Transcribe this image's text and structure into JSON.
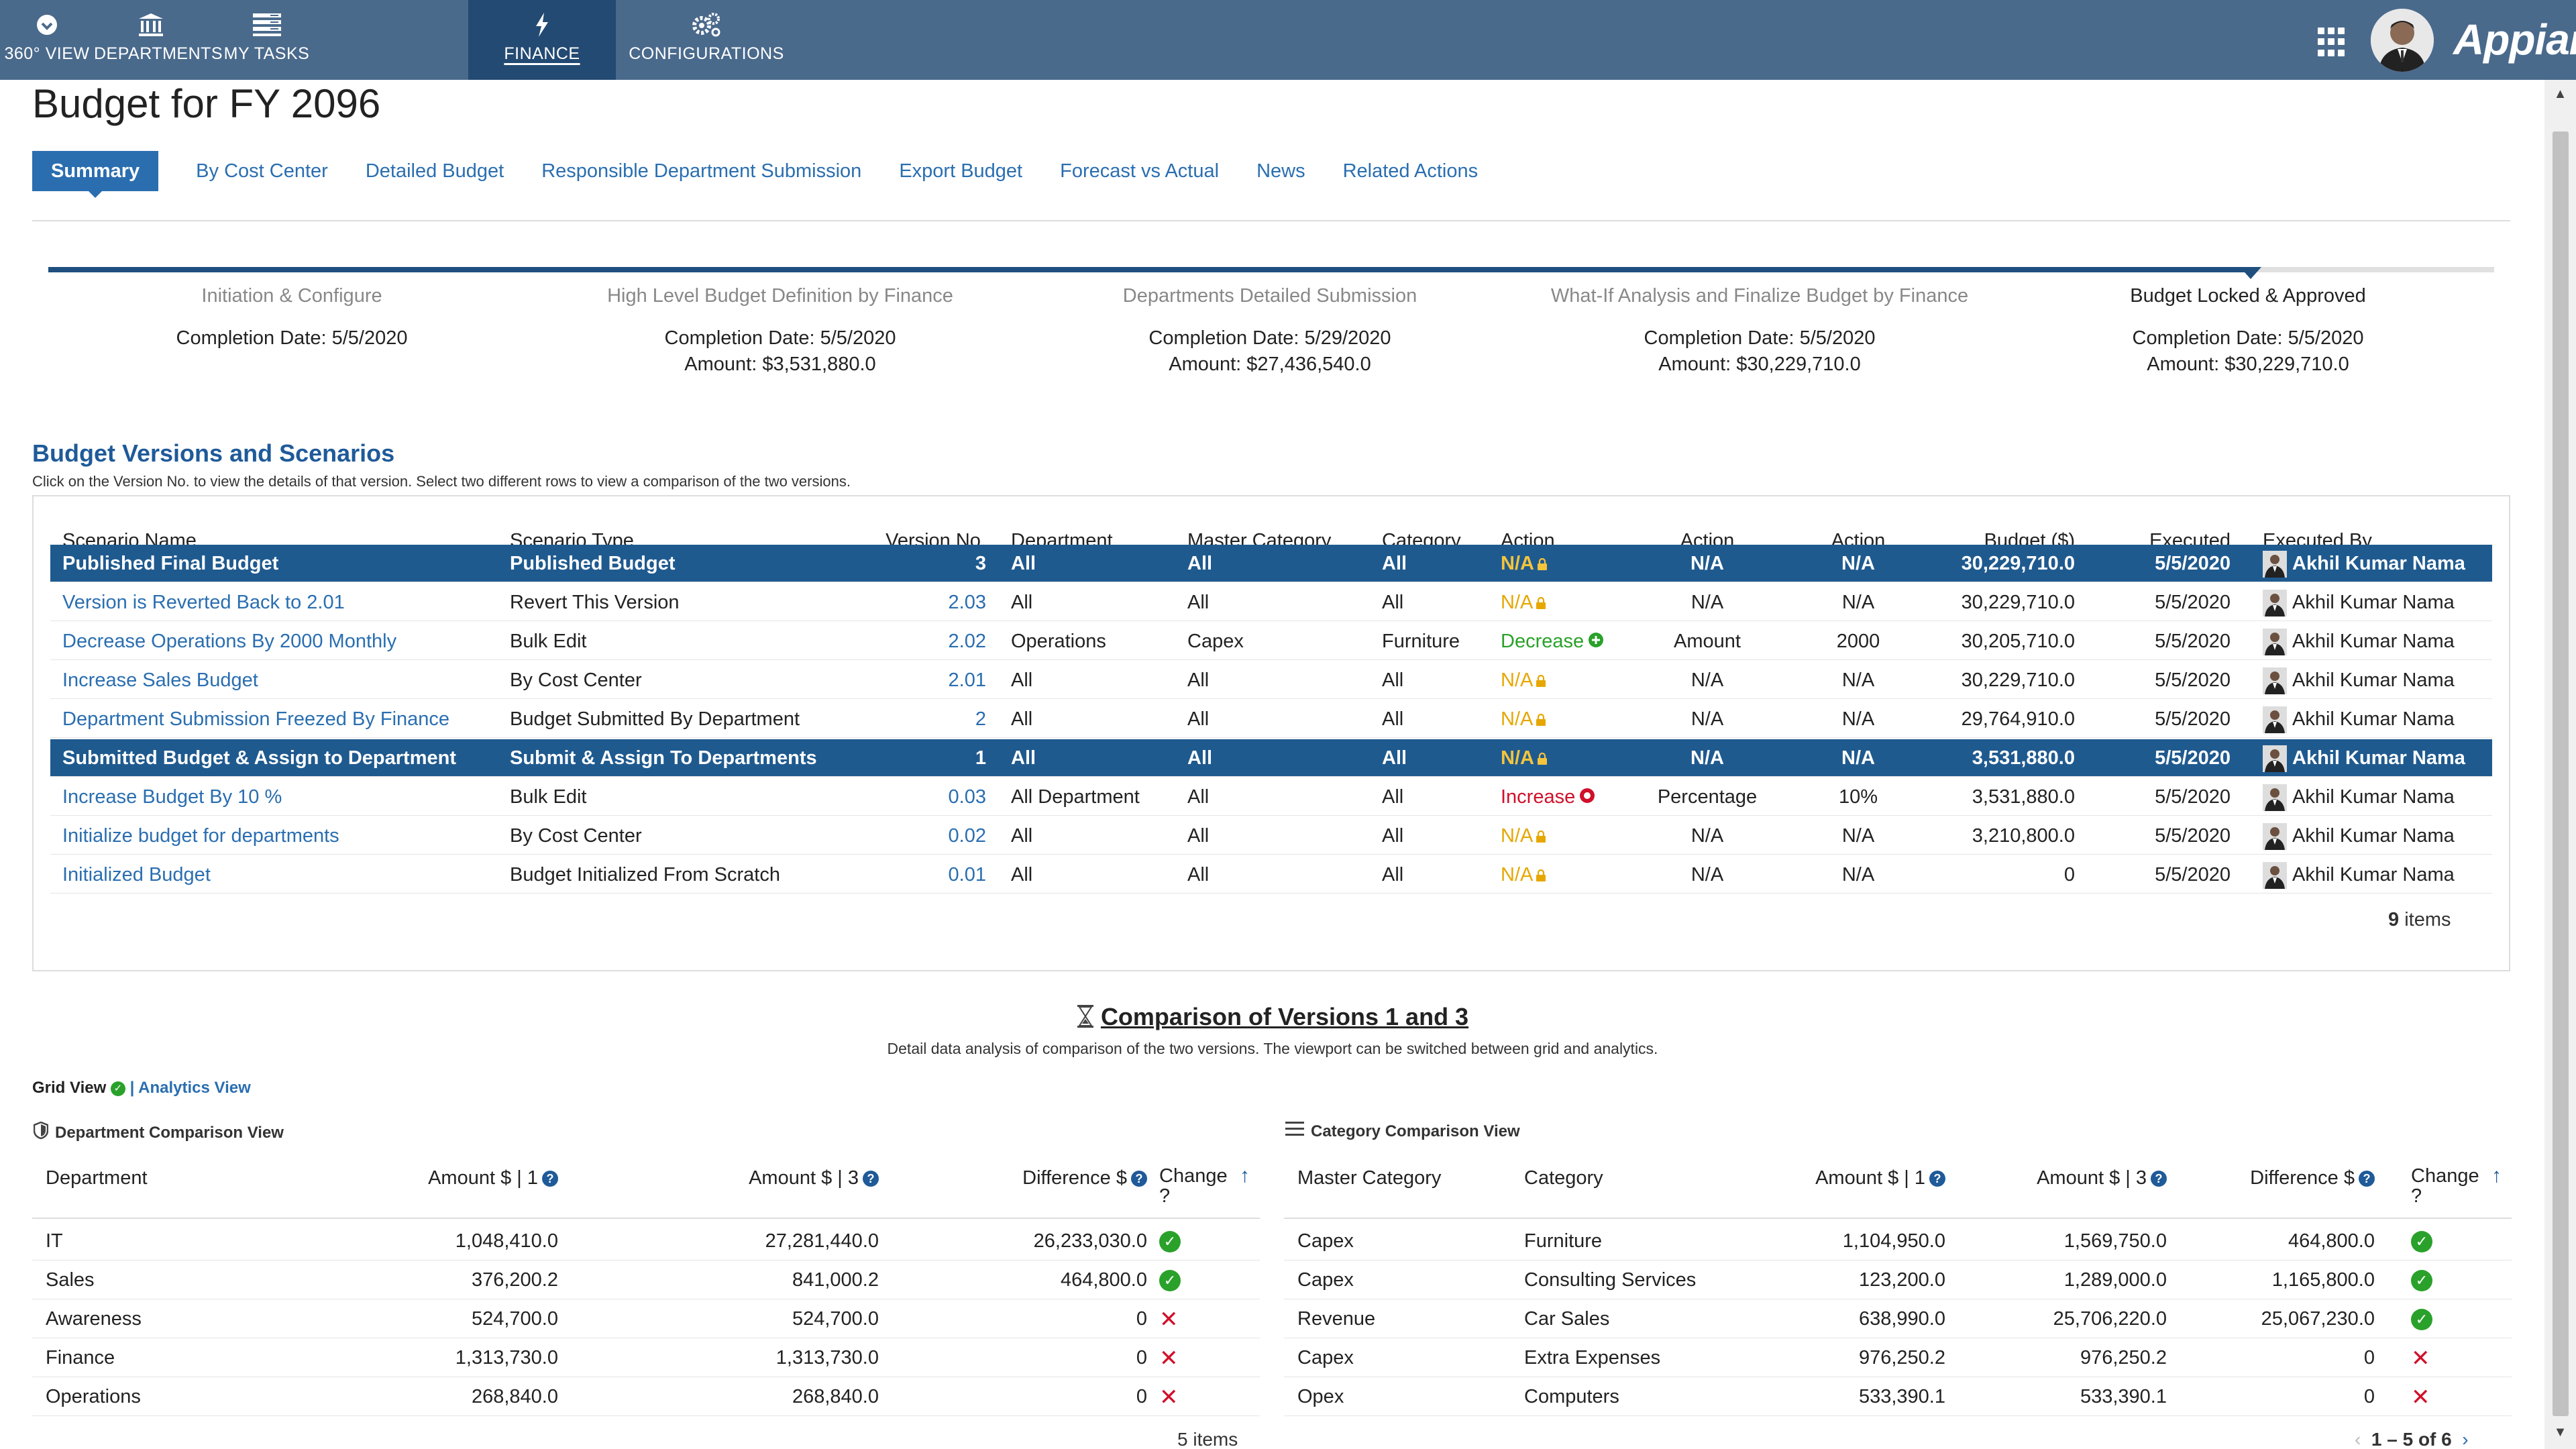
{
  "nav": {
    "items": [
      {
        "label": "360° VIEW",
        "icon": "eye-icon"
      },
      {
        "label": "DEPARTMENTS",
        "icon": "bank-icon"
      },
      {
        "label": "MY TASKS",
        "icon": "task-list-icon"
      },
      {
        "label": "FINANCE",
        "icon": "bolt-icon"
      },
      {
        "label": "CONFIGURATIONS",
        "icon": "gears-icon"
      }
    ],
    "active": "FINANCE",
    "brand": "Appian",
    "colors": {
      "bar": "#4a6a8c",
      "active": "#234a72"
    }
  },
  "page": {
    "title": "Budget for FY 2096"
  },
  "tabs": [
    "Summary",
    "By Cost Center",
    "Detailed Budget",
    "Responsible Department Submission",
    "Export Budget",
    "Forecast vs Actual",
    "News",
    "Related Actions"
  ],
  "timeline": {
    "stages": [
      {
        "name": "Initiation & Configure",
        "date": "Completion Date: 5/5/2020",
        "amount": ""
      },
      {
        "name": "High Level Budget Definition by Finance",
        "date": "Completion Date: 5/5/2020",
        "amount": "Amount: $3,531,880.0"
      },
      {
        "name": "Departments Detailed Submission",
        "date": "Completion Date: 5/29/2020",
        "amount": "Amount: $27,436,540.0"
      },
      {
        "name": "What-If Analysis and Finalize Budget by Finance",
        "date": "Completion Date: 5/5/2020",
        "amount": "Amount: $30,229,710.0"
      },
      {
        "name": "Budget Locked & Approved",
        "date": "Completion Date: 5/5/2020",
        "amount": "Amount: $30,229,710.0"
      }
    ],
    "current": "Budget Locked & Approved"
  },
  "versions": {
    "title": "Budget Versions and Scenarios",
    "subtitle": "Click on the Version No. to view the details of that version. Select two different rows to view a comparison of the two versions.",
    "columns": [
      "Scenario Name",
      "Scenario Type",
      "Version No.",
      "Department",
      "Master Category",
      "Category",
      "Action",
      "Action Type",
      "Action Value",
      "Budget ($)",
      "Executed On",
      "Executed By"
    ],
    "rows": [
      {
        "name": "Published Final Budget",
        "type": "Published Budget",
        "version": "3",
        "dept": "All",
        "master": "All",
        "cat": "All",
        "action": "N/A",
        "actionType": "N/A",
        "actionValue": "N/A",
        "budget": "30,229,710.0",
        "on": "5/5/2020",
        "by": "Akhil Kumar Nama"
      },
      {
        "name": "Version is Reverted Back to 2.01",
        "type": "Revert This Version",
        "version": "2.03",
        "dept": "All",
        "master": "All",
        "cat": "All",
        "action": "N/A",
        "actionType": "N/A",
        "actionValue": "N/A",
        "budget": "30,229,710.0",
        "on": "5/5/2020",
        "by": "Akhil Kumar Nama"
      },
      {
        "name": "Decrease Operations By 2000 Monthly",
        "type": "Bulk Edit",
        "version": "2.02",
        "dept": "Operations",
        "master": "Capex",
        "cat": "Furniture",
        "action": "Decrease",
        "actionType": "Amount",
        "actionValue": "2000",
        "budget": "30,205,710.0",
        "on": "5/5/2020",
        "by": "Akhil Kumar Nama"
      },
      {
        "name": "Increase Sales Budget",
        "type": "By Cost Center",
        "version": "2.01",
        "dept": "All",
        "master": "All",
        "cat": "All",
        "action": "N/A",
        "actionType": "N/A",
        "actionValue": "N/A",
        "budget": "30,229,710.0",
        "on": "5/5/2020",
        "by": "Akhil Kumar Nama"
      },
      {
        "name": "Department Submission Freezed By Finance",
        "type": "Budget Submitted By Department",
        "version": "2",
        "dept": "All",
        "master": "All",
        "cat": "All",
        "action": "N/A",
        "actionType": "N/A",
        "actionValue": "N/A",
        "budget": "29,764,910.0",
        "on": "5/5/2020",
        "by": "Akhil Kumar Nama"
      },
      {
        "name": "Submitted Budget & Assign to Department",
        "type": "Submit & Assign To Departments",
        "version": "1",
        "dept": "All",
        "master": "All",
        "cat": "All",
        "action": "N/A",
        "actionType": "N/A",
        "actionValue": "N/A",
        "budget": "3,531,880.0",
        "on": "5/5/2020",
        "by": "Akhil Kumar Nama"
      },
      {
        "name": "Increase Budget By 10 %",
        "type": "Bulk Edit",
        "version": "0.03",
        "dept": "All Department",
        "master": "All",
        "cat": "All",
        "action": "Increase",
        "actionType": "Percentage",
        "actionValue": "10%",
        "budget": "3,531,880.0",
        "on": "5/5/2020",
        "by": "Akhil Kumar Nama"
      },
      {
        "name": "Initialize budget for departments",
        "type": "By Cost Center",
        "version": "0.02",
        "dept": "All",
        "master": "All",
        "cat": "All",
        "action": "N/A",
        "actionType": "N/A",
        "actionValue": "N/A",
        "budget": "3,210,800.0",
        "on": "5/5/2020",
        "by": "Akhil Kumar Nama"
      },
      {
        "name": "Initialized Budget",
        "type": "Budget Initialized From Scratch",
        "version": "0.01",
        "dept": "All",
        "master": "All",
        "cat": "All",
        "action": "N/A",
        "actionType": "N/A",
        "actionValue": "N/A",
        "budget": "0",
        "on": "5/5/2020",
        "by": "Akhil Kumar Nama"
      }
    ],
    "selected": [
      "3",
      "1"
    ],
    "items_count": "9",
    "items_word": "items"
  },
  "comparison": {
    "title": "Comparison of Versions 1 and 3",
    "subtitle": "Detail data analysis of comparison of the two versions. The viewport can be switched between grid and analytics.",
    "grid_view_label": "Grid View",
    "separator": "|",
    "analytics_view_label": "Analytics View",
    "dept_panel": {
      "title": "Department Comparison View",
      "columns": [
        "Department",
        "Amount $ | 1",
        "Amount $ | 3",
        "Difference $",
        "Change ?"
      ],
      "rows": [
        {
          "dept": "IT",
          "a1": "1,048,410.0",
          "a3": "27,281,440.0",
          "diff": "26,233,030.0",
          "change": true
        },
        {
          "dept": "Sales",
          "a1": "376,200.2",
          "a3": "841,000.2",
          "diff": "464,800.0",
          "change": true
        },
        {
          "dept": "Awareness",
          "a1": "524,700.0",
          "a3": "524,700.0",
          "diff": "0",
          "change": false
        },
        {
          "dept": "Finance",
          "a1": "1,313,730.0",
          "a3": "1,313,730.0",
          "diff": "0",
          "change": false
        },
        {
          "dept": "Operations",
          "a1": "268,840.0",
          "a3": "268,840.0",
          "diff": "0",
          "change": false
        }
      ],
      "items": "5 items"
    },
    "cat_panel": {
      "title": "Category Comparison View",
      "columns": [
        "Master Category",
        "Category",
        "Amount $ | 1",
        "Amount $ | 3",
        "Difference $",
        "Change ?"
      ],
      "rows": [
        {
          "master": "Capex",
          "cat": "Furniture",
          "a1": "1,104,950.0",
          "a3": "1,569,750.0",
          "diff": "464,800.0",
          "change": true
        },
        {
          "master": "Capex",
          "cat": "Consulting Services",
          "a1": "123,200.0",
          "a3": "1,289,000.0",
          "diff": "1,165,800.0",
          "change": true
        },
        {
          "master": "Revenue",
          "cat": "Car Sales",
          "a1": "638,990.0",
          "a3": "25,706,220.0",
          "diff": "25,067,230.0",
          "change": true
        },
        {
          "master": "Capex",
          "cat": "Extra Expenses",
          "a1": "976,250.2",
          "a3": "976,250.2",
          "diff": "0",
          "change": false
        },
        {
          "master": "Opex",
          "cat": "Computers",
          "a1": "533,390.1",
          "a3": "533,390.1",
          "diff": "0",
          "change": false
        }
      ],
      "pager": "1 – 5 of 6"
    }
  }
}
